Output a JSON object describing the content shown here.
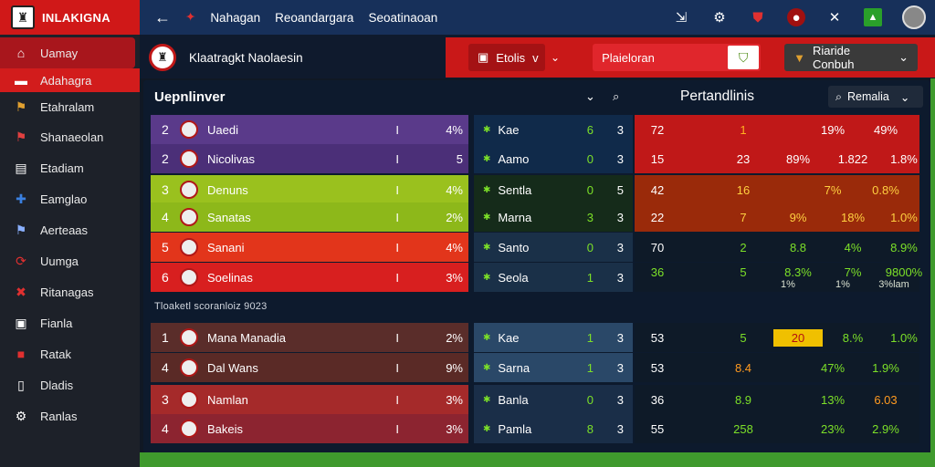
{
  "brand": {
    "title": "INLAKIGNA"
  },
  "sidebar": {
    "items": [
      {
        "label": "Uamay",
        "icon": "home-icon"
      },
      {
        "label": "Adahagra",
        "icon": "flag-icon"
      },
      {
        "label": "Etahralam",
        "icon": "flag-icon"
      },
      {
        "label": "Shanaeolan",
        "icon": "flag-icon"
      },
      {
        "label": "Etadiam",
        "icon": "document-icon"
      },
      {
        "label": "Eamglao",
        "icon": "puzzle-icon"
      },
      {
        "label": "Aerteaas",
        "icon": "flag-icon"
      },
      {
        "label": "Uumga",
        "icon": "refresh-icon"
      },
      {
        "label": "Ritanagas",
        "icon": "flag-icon"
      },
      {
        "label": "Fianla",
        "icon": "tv-icon"
      },
      {
        "label": "Ratak",
        "icon": "flag-icon"
      },
      {
        "label": "Dladis",
        "icon": "document-icon"
      },
      {
        "label": "Ranlas",
        "icon": "gear-icon"
      }
    ]
  },
  "topbar": {
    "crumbs": [
      "Nahagan",
      "Reoandargara",
      "Seoatinaoan"
    ]
  },
  "header": {
    "club": "Klaatragkt Naolaesin",
    "pill1": "Etolis",
    "pill1_sub": "v",
    "pill2": "Plaieloran",
    "dropdown": "Riaride Conbuh"
  },
  "panel": {
    "left_title": "Uepnlinver",
    "right_title": "Pertandlinis",
    "remove_all": "Remalia",
    "sub_label": "Tloaketl scoranloiz 9023",
    "rows": [
      {
        "rank": "2",
        "name": "Uaedi",
        "sep": "I",
        "pct": "4%",
        "m_name": "Kae",
        "m_a": "6",
        "m_b": "3",
        "r": [
          "72",
          "1",
          "19%",
          "49%"
        ]
      },
      {
        "rank": "2",
        "name": "Nicolivas",
        "sep": "I",
        "pct": "5",
        "m_name": "Aamo",
        "m_a": "0",
        "m_b": "3",
        "r": [
          "15",
          "23",
          "89%",
          "1.822",
          "1.8%"
        ]
      },
      {
        "rank": "3",
        "name": "Denuns",
        "sep": "I",
        "pct": "4%",
        "m_name": "Sentla",
        "m_a": "0",
        "m_b": "5",
        "r": [
          "42",
          "16",
          "7%",
          "0.8%"
        ]
      },
      {
        "rank": "4",
        "name": "Sanatas",
        "sep": "I",
        "pct": "2%",
        "m_name": "Marna",
        "m_a": "3",
        "m_b": "3",
        "r": [
          "22",
          "7",
          "9%",
          "18%",
          "1.0%"
        ]
      },
      {
        "rank": "5",
        "name": "Sanani",
        "sep": "I",
        "pct": "4%",
        "m_name": "Santo",
        "m_a": "0",
        "m_b": "3",
        "r": [
          "70",
          "2",
          "8.8",
          "4%",
          "8.9%"
        ]
      },
      {
        "rank": "6",
        "name": "Soelinas",
        "sep": "I",
        "pct": "3%",
        "m_name": "Seola",
        "m_a": "1",
        "m_b": "3",
        "r": [
          "36",
          "5",
          "8.3%",
          "7%",
          "9800%"
        ]
      },
      {
        "rank": "1",
        "name": "Mana Manadia",
        "sep": "I",
        "pct": "2%",
        "m_name": "Kae",
        "m_a": "1",
        "m_b": "3",
        "r": [
          "53",
          "5",
          "20",
          "8.%",
          "1.0%"
        ]
      },
      {
        "rank": "4",
        "name": "Dal Wans",
        "sep": "I",
        "pct": "9%",
        "m_name": "Sarna",
        "m_a": "1",
        "m_b": "3",
        "r": [
          "53",
          "8.4",
          "47%",
          "1.9%"
        ]
      },
      {
        "rank": "3",
        "name": "Namlan",
        "sep": "I",
        "pct": "3%",
        "m_name": "Banla",
        "m_a": "0",
        "m_b": "3",
        "r": [
          "36",
          "8.9",
          "13%",
          "6.03"
        ]
      },
      {
        "rank": "4",
        "name": "Bakeis",
        "sep": "I",
        "pct": "3%",
        "m_name": "Pamla",
        "m_a": "8",
        "m_b": "3",
        "r": [
          "55",
          "258",
          "23%",
          "2.9%"
        ]
      }
    ],
    "row6_sub": [
      "1%",
      "1%",
      "3%lam"
    ]
  },
  "colors": {
    "brand_red": "#d01818",
    "topbar_blue": "#17305a",
    "accent_green": "#7ce028"
  }
}
